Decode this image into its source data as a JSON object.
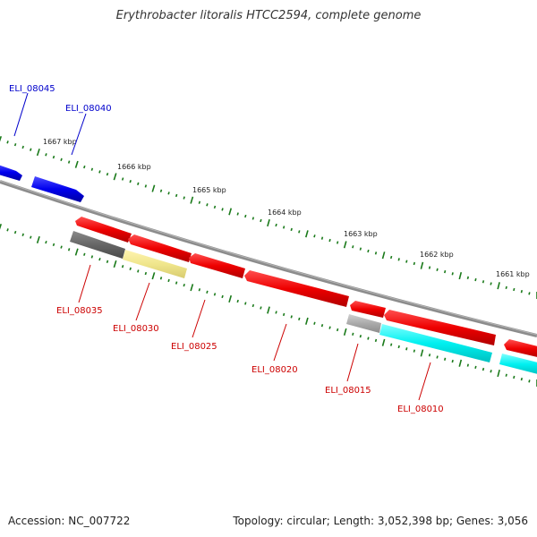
{
  "title": "Erythrobacter litoralis HTCC2594, complete genome",
  "accession": "Accession: NC_007722",
  "summary": "Topology: circular; Length: 3,052,398 bp; Genes: 3,056",
  "colors": {
    "forward_label": "#0000cc",
    "reverse_label": "#cc0000",
    "tick": "#1a7a1a",
    "backbone": "#8c8c8c"
  },
  "scale_labels": [
    "1667 kbp",
    "1666 kbp",
    "1665 kbp",
    "1664 kbp",
    "1663 kbp",
    "1662 kbp",
    "1661 kbp"
  ],
  "genes_forward": [
    {
      "name": "ELI_08045",
      "color": "#0000ee"
    },
    {
      "name": "ELI_08040",
      "color": "#0000ee"
    }
  ],
  "genes_reverse": [
    {
      "name": "ELI_08035",
      "color": "#666666"
    },
    {
      "name": "ELI_08030",
      "color": "#f0e68c"
    },
    {
      "name": "ELI_08025",
      "color": "#ee0000"
    },
    {
      "name": "ELI_08020",
      "color": "#ee0000"
    },
    {
      "name": "ELI_08015",
      "color": "#aaaaaa"
    },
    {
      "name": "ELI_08010",
      "color": "#00ffff"
    }
  ],
  "unlabeled_reverse_color": "#ee0000"
}
